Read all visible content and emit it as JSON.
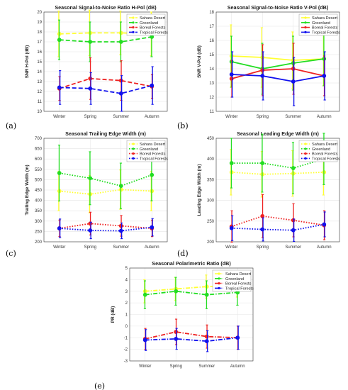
{
  "chart_data": [
    {
      "type": "line",
      "panel_label": "(a)",
      "title": "Seasonal Signal-to-Noise Ratio H-Pol (dB)",
      "ylabel": "SNR H-Pol (dB)",
      "categories": [
        "Winter",
        "Spring",
        "Summer",
        "Autumn"
      ],
      "ylim": [
        10,
        20
      ],
      "yticks": [
        10,
        11,
        12,
        13,
        14,
        15,
        16,
        17,
        18,
        19,
        20
      ],
      "grid": true,
      "legend_position": "top-right",
      "series": [
        {
          "name": "Sahara Desert",
          "color": "#ffff33",
          "dash": "long",
          "values": [
            17.8,
            17.9,
            17.9,
            17.8
          ],
          "err": [
            2.3,
            2.3,
            2.2,
            2.2
          ]
        },
        {
          "name": "Greenland",
          "color": "#22dd22",
          "dash": "long",
          "values": [
            17.2,
            17.0,
            17.0,
            17.5
          ],
          "err": [
            2.0,
            2.0,
            2.0,
            2.0
          ]
        },
        {
          "name": "Boreal Forests",
          "color": "#ee2222",
          "dash": "long",
          "values": [
            12.3,
            13.3,
            13.1,
            12.5
          ],
          "err": [
            1.2,
            2.1,
            2.0,
            1.2
          ]
        },
        {
          "name": "Tropical Forests",
          "color": "#1111ee",
          "dash": "long",
          "values": [
            12.4,
            12.3,
            11.8,
            12.6
          ],
          "err": [
            1.7,
            1.6,
            1.8,
            1.9
          ]
        }
      ]
    },
    {
      "type": "line",
      "panel_label": "(b)",
      "title": "Seasonal Signal-to-Noise Ratio V-Pol (dB)",
      "ylabel": "SNR V-Pol (dB)",
      "categories": [
        "Winter",
        "Spring",
        "Summer",
        "Autumn"
      ],
      "ylim": [
        11,
        18
      ],
      "yticks": [
        11,
        12,
        13,
        14,
        15,
        16,
        17,
        18
      ],
      "grid": true,
      "legend_position": "top-right",
      "series": [
        {
          "name": "Sahara Desert",
          "color": "#ffff33",
          "dash": "solid",
          "values": [
            14.9,
            14.8,
            14.6,
            14.7
          ],
          "err": [
            2.2,
            2.1,
            2.0,
            1.9
          ]
        },
        {
          "name": "Greenland",
          "color": "#22dd22",
          "dash": "solid",
          "values": [
            14.5,
            14.0,
            14.4,
            14.7
          ],
          "err": [
            1.8,
            1.8,
            1.9,
            1.9
          ]
        },
        {
          "name": "Boreal Forests",
          "color": "#ee2222",
          "dash": "solid",
          "values": [
            13.3,
            13.9,
            14.0,
            13.5
          ],
          "err": [
            1.3,
            1.8,
            1.8,
            1.4
          ]
        },
        {
          "name": "Tropical Forests",
          "color": "#1111ee",
          "dash": "solid",
          "values": [
            13.6,
            13.5,
            13.1,
            13.5
          ],
          "err": [
            1.6,
            1.7,
            1.7,
            1.7
          ]
        }
      ]
    },
    {
      "type": "line",
      "panel_label": "(c)",
      "title": "Seasonal Trailing Edge Width (m)",
      "ylabel": "Trailing Edge Width (m)",
      "categories": [
        "Winter",
        "Spring",
        "Summer",
        "Autumn"
      ],
      "ylim": [
        200,
        700
      ],
      "yticks": [
        200,
        250,
        300,
        350,
        400,
        450,
        500,
        550,
        600,
        650,
        700
      ],
      "grid": true,
      "legend_position": "top-right",
      "series": [
        {
          "name": "Sahara Desert",
          "color": "#ffff33",
          "dash": "dot",
          "values": [
            445,
            430,
            452,
            445
          ],
          "err": [
            95,
            90,
            95,
            95
          ]
        },
        {
          "name": "Greenland",
          "color": "#22dd22",
          "dash": "dot",
          "values": [
            532,
            507,
            470,
            523
          ],
          "err": [
            135,
            128,
            110,
            125
          ]
        },
        {
          "name": "Boreal Forests",
          "color": "#ee2222",
          "dash": "dot",
          "values": [
            265,
            288,
            277,
            265
          ],
          "err": [
            40,
            55,
            50,
            40
          ]
        },
        {
          "name": "Tropical Forests",
          "color": "#1111ee",
          "dash": "dot",
          "values": [
            265,
            255,
            253,
            270
          ],
          "err": [
            45,
            40,
            38,
            42
          ]
        }
      ]
    },
    {
      "type": "line",
      "panel_label": "(d)",
      "title": "Seasonal Leading Edge Width (m)",
      "ylabel": "Leading Edge Width (m)",
      "categories": [
        "Winter",
        "Spring",
        "Summer",
        "Autumn"
      ],
      "ylim": [
        200,
        450
      ],
      "yticks": [
        200,
        250,
        300,
        350,
        400,
        450
      ],
      "grid": true,
      "legend_position": "top-right",
      "series": [
        {
          "name": "Sahara Desert",
          "color": "#ffff33",
          "dash": "dot",
          "values": [
            368,
            363,
            365,
            368
          ],
          "err": [
            55,
            55,
            55,
            55
          ]
        },
        {
          "name": "Greenland",
          "color": "#22dd22",
          "dash": "dot",
          "values": [
            390,
            390,
            378,
            400
          ],
          "err": [
            60,
            70,
            62,
            62
          ]
        },
        {
          "name": "Boreal Forests",
          "color": "#ee2222",
          "dash": "dot",
          "values": [
            237,
            262,
            252,
            240
          ],
          "err": [
            38,
            52,
            40,
            35
          ]
        },
        {
          "name": "Tropical Forests",
          "color": "#1111ee",
          "dash": "dot",
          "values": [
            233,
            230,
            228,
            242
          ],
          "err": [
            30,
            28,
            27,
            30
          ]
        }
      ]
    },
    {
      "type": "line",
      "panel_label": "(e)",
      "title": "Seasonal Polarimetric Ratio (dB)",
      "ylabel": "PR (dB)",
      "categories": [
        "Winter",
        "Spring",
        "Summer",
        "Autumn"
      ],
      "ylim": [
        -3,
        5
      ],
      "yticks": [
        -3,
        -2,
        -1,
        0,
        1,
        2,
        3,
        4,
        5
      ],
      "grid": true,
      "legend_position": "top-right",
      "series": [
        {
          "name": "Sahara Desert",
          "color": "#ffff33",
          "dash": "dashdot",
          "values": [
            3.0,
            3.2,
            3.4,
            3.5
          ],
          "err": [
            1.0,
            1.0,
            1.0,
            1.0
          ]
        },
        {
          "name": "Greenland",
          "color": "#22dd22",
          "dash": "dashdot",
          "values": [
            2.7,
            3.0,
            2.7,
            2.9
          ],
          "err": [
            1.2,
            1.2,
            1.2,
            1.1
          ]
        },
        {
          "name": "Boreal Forests",
          "color": "#ee2222",
          "dash": "dashdot",
          "values": [
            -1.1,
            -0.5,
            -0.9,
            -1.0
          ],
          "err": [
            0.9,
            1.1,
            1.0,
            1.0
          ]
        },
        {
          "name": "Tropical Forests",
          "color": "#1111ee",
          "dash": "dashdot",
          "values": [
            -1.2,
            -1.1,
            -1.3,
            -1.0
          ],
          "err": [
            0.9,
            0.9,
            0.9,
            1.0
          ]
        }
      ]
    }
  ]
}
